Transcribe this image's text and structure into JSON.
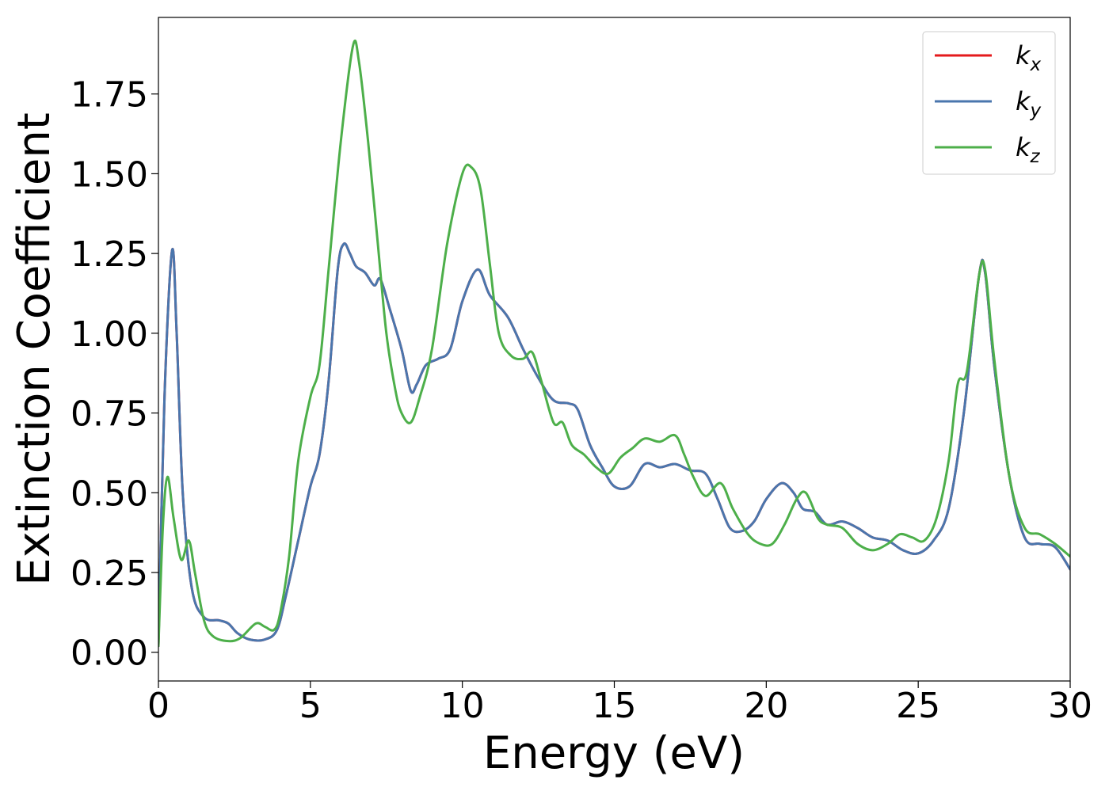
{
  "chart_data": {
    "type": "line",
    "title": "",
    "xlabel": "Energy (eV)",
    "ylabel": "Extinction Coefficient",
    "xlim": [
      0,
      30
    ],
    "ylim": [
      -0.09,
      1.99
    ],
    "xticks": [
      0,
      5,
      10,
      15,
      20,
      25,
      30
    ],
    "xtick_labels": [
      "0",
      "5",
      "10",
      "15",
      "20",
      "25",
      "30"
    ],
    "yticks": [
      0.0,
      0.25,
      0.5,
      0.75,
      1.0,
      1.25,
      1.5,
      1.75
    ],
    "ytick_labels": [
      "0.00",
      "0.25",
      "0.50",
      "0.75",
      "1.00",
      "1.25",
      "1.50",
      "1.75"
    ],
    "grid": false,
    "legend_position": "top-right",
    "series": [
      {
        "name": "k_x",
        "legend_base": "k",
        "legend_sub": "x",
        "color": "#e41a1c",
        "points": [
          [
            0,
            0.02
          ],
          [
            0.2,
            0.8
          ],
          [
            0.45,
            1.26
          ],
          [
            0.6,
            1.0
          ],
          [
            0.8,
            0.5
          ],
          [
            1.1,
            0.2
          ],
          [
            1.5,
            0.11
          ],
          [
            2.0,
            0.1
          ],
          [
            2.3,
            0.09
          ],
          [
            2.6,
            0.06
          ],
          [
            3.0,
            0.04
          ],
          [
            3.5,
            0.04
          ],
          [
            3.9,
            0.07
          ],
          [
            4.2,
            0.18
          ],
          [
            4.6,
            0.35
          ],
          [
            5.0,
            0.52
          ],
          [
            5.3,
            0.62
          ],
          [
            5.6,
            0.85
          ],
          [
            5.9,
            1.2
          ],
          [
            6.1,
            1.28
          ],
          [
            6.3,
            1.25
          ],
          [
            6.5,
            1.21
          ],
          [
            6.8,
            1.19
          ],
          [
            7.1,
            1.15
          ],
          [
            7.3,
            1.17
          ],
          [
            7.6,
            1.08
          ],
          [
            8.0,
            0.95
          ],
          [
            8.3,
            0.82
          ],
          [
            8.5,
            0.84
          ],
          [
            8.8,
            0.9
          ],
          [
            9.2,
            0.92
          ],
          [
            9.6,
            0.95
          ],
          [
            10.0,
            1.1
          ],
          [
            10.5,
            1.2
          ],
          [
            10.9,
            1.12
          ],
          [
            11.5,
            1.05
          ],
          [
            12.0,
            0.95
          ],
          [
            12.5,
            0.86
          ],
          [
            13.0,
            0.79
          ],
          [
            13.5,
            0.78
          ],
          [
            13.8,
            0.76
          ],
          [
            14.2,
            0.65
          ],
          [
            14.6,
            0.58
          ],
          [
            15.0,
            0.52
          ],
          [
            15.5,
            0.52
          ],
          [
            16.0,
            0.59
          ],
          [
            16.5,
            0.58
          ],
          [
            17.0,
            0.59
          ],
          [
            17.5,
            0.57
          ],
          [
            18.0,
            0.56
          ],
          [
            18.4,
            0.48
          ],
          [
            18.8,
            0.39
          ],
          [
            19.2,
            0.38
          ],
          [
            19.6,
            0.41
          ],
          [
            20.0,
            0.48
          ],
          [
            20.5,
            0.53
          ],
          [
            20.9,
            0.5
          ],
          [
            21.2,
            0.45
          ],
          [
            21.6,
            0.44
          ],
          [
            22.0,
            0.4
          ],
          [
            22.5,
            0.41
          ],
          [
            23.0,
            0.39
          ],
          [
            23.5,
            0.36
          ],
          [
            24.0,
            0.35
          ],
          [
            24.5,
            0.32
          ],
          [
            25.0,
            0.31
          ],
          [
            25.5,
            0.35
          ],
          [
            26.0,
            0.45
          ],
          [
            26.5,
            0.75
          ],
          [
            27.0,
            1.18
          ],
          [
            27.2,
            1.19
          ],
          [
            27.5,
            0.9
          ],
          [
            28.0,
            0.55
          ],
          [
            28.5,
            0.36
          ],
          [
            29.0,
            0.34
          ],
          [
            29.5,
            0.33
          ],
          [
            30.0,
            0.26
          ]
        ]
      },
      {
        "name": "k_y",
        "legend_base": "k",
        "legend_sub": "y",
        "color": "#4a76ad",
        "points": [
          [
            0,
            0.02
          ],
          [
            0.2,
            0.8
          ],
          [
            0.45,
            1.26
          ],
          [
            0.6,
            1.0
          ],
          [
            0.8,
            0.5
          ],
          [
            1.1,
            0.2
          ],
          [
            1.5,
            0.11
          ],
          [
            2.0,
            0.1
          ],
          [
            2.3,
            0.09
          ],
          [
            2.6,
            0.06
          ],
          [
            3.0,
            0.04
          ],
          [
            3.5,
            0.04
          ],
          [
            3.9,
            0.07
          ],
          [
            4.2,
            0.18
          ],
          [
            4.6,
            0.35
          ],
          [
            5.0,
            0.52
          ],
          [
            5.3,
            0.62
          ],
          [
            5.6,
            0.85
          ],
          [
            5.9,
            1.2
          ],
          [
            6.1,
            1.28
          ],
          [
            6.3,
            1.25
          ],
          [
            6.5,
            1.21
          ],
          [
            6.8,
            1.19
          ],
          [
            7.1,
            1.15
          ],
          [
            7.3,
            1.17
          ],
          [
            7.6,
            1.08
          ],
          [
            8.0,
            0.95
          ],
          [
            8.3,
            0.82
          ],
          [
            8.5,
            0.84
          ],
          [
            8.8,
            0.9
          ],
          [
            9.2,
            0.92
          ],
          [
            9.6,
            0.95
          ],
          [
            10.0,
            1.1
          ],
          [
            10.5,
            1.2
          ],
          [
            10.9,
            1.12
          ],
          [
            11.5,
            1.05
          ],
          [
            12.0,
            0.95
          ],
          [
            12.5,
            0.86
          ],
          [
            13.0,
            0.79
          ],
          [
            13.5,
            0.78
          ],
          [
            13.8,
            0.76
          ],
          [
            14.2,
            0.65
          ],
          [
            14.6,
            0.58
          ],
          [
            15.0,
            0.52
          ],
          [
            15.5,
            0.52
          ],
          [
            16.0,
            0.59
          ],
          [
            16.5,
            0.58
          ],
          [
            17.0,
            0.59
          ],
          [
            17.5,
            0.57
          ],
          [
            18.0,
            0.56
          ],
          [
            18.4,
            0.48
          ],
          [
            18.8,
            0.39
          ],
          [
            19.2,
            0.38
          ],
          [
            19.6,
            0.41
          ],
          [
            20.0,
            0.48
          ],
          [
            20.5,
            0.53
          ],
          [
            20.9,
            0.5
          ],
          [
            21.2,
            0.45
          ],
          [
            21.6,
            0.44
          ],
          [
            22.0,
            0.4
          ],
          [
            22.5,
            0.41
          ],
          [
            23.0,
            0.39
          ],
          [
            23.5,
            0.36
          ],
          [
            24.0,
            0.35
          ],
          [
            24.5,
            0.32
          ],
          [
            25.0,
            0.31
          ],
          [
            25.5,
            0.35
          ],
          [
            26.0,
            0.45
          ],
          [
            26.5,
            0.75
          ],
          [
            27.0,
            1.18
          ],
          [
            27.2,
            1.19
          ],
          [
            27.5,
            0.9
          ],
          [
            28.0,
            0.55
          ],
          [
            28.5,
            0.36
          ],
          [
            29.0,
            0.34
          ],
          [
            29.5,
            0.33
          ],
          [
            30.0,
            0.26
          ]
        ]
      },
      {
        "name": "k_z",
        "legend_base": "k",
        "legend_sub": "z",
        "color": "#4daf4a",
        "points": [
          [
            0,
            0.02
          ],
          [
            0.15,
            0.4
          ],
          [
            0.3,
            0.55
          ],
          [
            0.5,
            0.42
          ],
          [
            0.75,
            0.29
          ],
          [
            1.0,
            0.35
          ],
          [
            1.2,
            0.25
          ],
          [
            1.5,
            0.1
          ],
          [
            1.8,
            0.05
          ],
          [
            2.3,
            0.035
          ],
          [
            2.7,
            0.045
          ],
          [
            3.2,
            0.09
          ],
          [
            3.5,
            0.08
          ],
          [
            3.8,
            0.07
          ],
          [
            4.0,
            0.12
          ],
          [
            4.3,
            0.3
          ],
          [
            4.6,
            0.6
          ],
          [
            5.0,
            0.8
          ],
          [
            5.3,
            0.9
          ],
          [
            5.6,
            1.2
          ],
          [
            6.0,
            1.6
          ],
          [
            6.4,
            1.9
          ],
          [
            6.6,
            1.85
          ],
          [
            6.9,
            1.6
          ],
          [
            7.2,
            1.3
          ],
          [
            7.5,
            1.0
          ],
          [
            7.8,
            0.82
          ],
          [
            8.0,
            0.75
          ],
          [
            8.3,
            0.72
          ],
          [
            8.6,
            0.8
          ],
          [
            9.0,
            0.95
          ],
          [
            9.5,
            1.28
          ],
          [
            10.0,
            1.5
          ],
          [
            10.3,
            1.52
          ],
          [
            10.6,
            1.45
          ],
          [
            10.9,
            1.22
          ],
          [
            11.2,
            1.0
          ],
          [
            11.6,
            0.93
          ],
          [
            12.0,
            0.92
          ],
          [
            12.3,
            0.94
          ],
          [
            12.6,
            0.85
          ],
          [
            13.0,
            0.72
          ],
          [
            13.3,
            0.72
          ],
          [
            13.6,
            0.65
          ],
          [
            14.0,
            0.62
          ],
          [
            14.4,
            0.58
          ],
          [
            14.8,
            0.56
          ],
          [
            15.2,
            0.61
          ],
          [
            15.6,
            0.64
          ],
          [
            16.0,
            0.67
          ],
          [
            16.5,
            0.66
          ],
          [
            17.0,
            0.68
          ],
          [
            17.3,
            0.62
          ],
          [
            17.6,
            0.55
          ],
          [
            18.0,
            0.49
          ],
          [
            18.5,
            0.53
          ],
          [
            18.9,
            0.45
          ],
          [
            19.4,
            0.37
          ],
          [
            19.8,
            0.34
          ],
          [
            20.2,
            0.34
          ],
          [
            20.6,
            0.4
          ],
          [
            21.0,
            0.48
          ],
          [
            21.3,
            0.5
          ],
          [
            21.7,
            0.42
          ],
          [
            22.0,
            0.4
          ],
          [
            22.5,
            0.39
          ],
          [
            23.0,
            0.34
          ],
          [
            23.5,
            0.32
          ],
          [
            24.0,
            0.34
          ],
          [
            24.4,
            0.37
          ],
          [
            24.8,
            0.36
          ],
          [
            25.2,
            0.35
          ],
          [
            25.6,
            0.42
          ],
          [
            26.0,
            0.6
          ],
          [
            26.3,
            0.84
          ],
          [
            26.6,
            0.88
          ],
          [
            27.0,
            1.18
          ],
          [
            27.2,
            1.2
          ],
          [
            27.5,
            0.92
          ],
          [
            28.0,
            0.55
          ],
          [
            28.5,
            0.39
          ],
          [
            29.0,
            0.37
          ],
          [
            29.5,
            0.34
          ],
          [
            30.0,
            0.3
          ]
        ]
      }
    ]
  }
}
